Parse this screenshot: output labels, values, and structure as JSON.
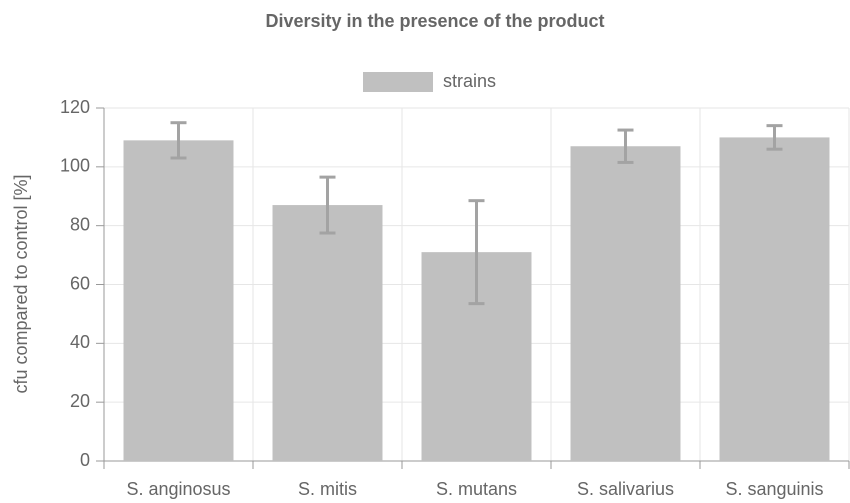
{
  "chart_data": {
    "type": "bar",
    "title": "Diversity in the presence of the product",
    "ylabel": "cfu compared to control [%]",
    "categories": [
      "S. anginosus",
      "S. mitis",
      "S. mutans",
      "S. salivarius",
      "S. sanguinis"
    ],
    "series": [
      {
        "name": "strains",
        "color": "#c0c0c0",
        "error_color": "#a3a3a3",
        "values": [
          109,
          87,
          71,
          107,
          110
        ],
        "errors": [
          6,
          9.5,
          17.5,
          5.5,
          4
        ]
      }
    ],
    "ylim": [
      0,
      120
    ],
    "yticks": [
      0,
      20,
      40,
      60,
      80,
      100,
      120
    ],
    "grid": true,
    "legend": "top"
  }
}
